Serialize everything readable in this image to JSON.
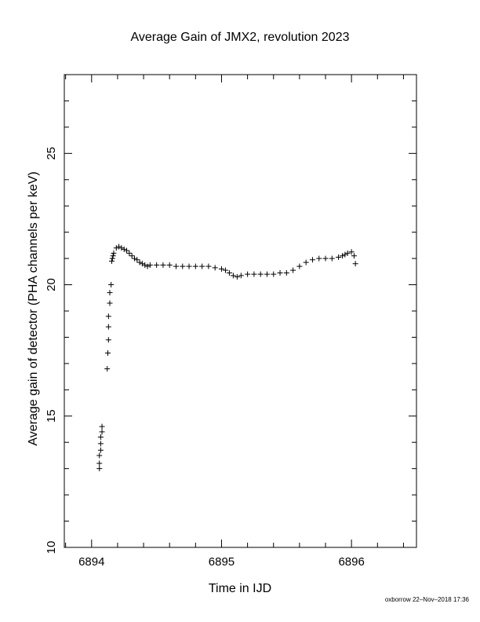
{
  "chart_data": {
    "type": "scatter",
    "title": "Average Gain of JMX2, revolution 2023",
    "xlabel": "Time in IJD",
    "ylabel": "Average gain of detector (PHA channels per keV)",
    "xlim": [
      6893.79,
      6896.5
    ],
    "ylim": [
      10,
      28
    ],
    "xticks": [
      6894,
      6895,
      6896
    ],
    "yticks": [
      10,
      15,
      20,
      25
    ],
    "grid": false,
    "marker": "plus",
    "marker_color": "#000000",
    "x": [
      6894.06,
      6894.06,
      6894.06,
      6894.07,
      6894.07,
      6894.07,
      6894.08,
      6894.08,
      6894.12,
      6894.125,
      6894.13,
      6894.13,
      6894.13,
      6894.14,
      6894.14,
      6894.15,
      6894.155,
      6894.16,
      6894.165,
      6894.17,
      6894.19,
      6894.21,
      6894.23,
      6894.25,
      6894.27,
      6894.29,
      6894.31,
      6894.33,
      6894.35,
      6894.37,
      6894.39,
      6894.41,
      6894.43,
      6894.45,
      6894.5,
      6894.55,
      6894.6,
      6894.65,
      6894.7,
      6894.75,
      6894.8,
      6894.85,
      6894.9,
      6894.95,
      6895.0,
      6895.03,
      6895.06,
      6895.09,
      6895.12,
      6895.15,
      6895.2,
      6895.25,
      6895.3,
      6895.35,
      6895.4,
      6895.45,
      6895.5,
      6895.55,
      6895.6,
      6895.65,
      6895.7,
      6895.75,
      6895.8,
      6895.85,
      6895.9,
      6895.93,
      6895.95,
      6895.97,
      6896.0,
      6896.02,
      6896.03
    ],
    "y": [
      13.0,
      13.2,
      13.5,
      13.7,
      13.95,
      14.2,
      14.4,
      14.6,
      16.8,
      17.4,
      17.9,
      18.4,
      18.8,
      19.3,
      19.7,
      20.0,
      20.9,
      21.0,
      21.1,
      21.2,
      21.4,
      21.45,
      21.4,
      21.35,
      21.3,
      21.2,
      21.1,
      21.0,
      20.95,
      20.85,
      20.8,
      20.75,
      20.7,
      20.75,
      20.75,
      20.75,
      20.75,
      20.7,
      20.7,
      20.7,
      20.7,
      20.7,
      20.7,
      20.65,
      20.6,
      20.55,
      20.45,
      20.35,
      20.3,
      20.35,
      20.4,
      20.4,
      20.4,
      20.4,
      20.4,
      20.45,
      20.45,
      20.55,
      20.7,
      20.85,
      20.95,
      21.0,
      21.0,
      21.0,
      21.05,
      21.1,
      21.15,
      21.2,
      21.25,
      21.1,
      20.8
    ]
  },
  "footer": {
    "credit": "oxborrow 22–Nov–2018 17:36"
  }
}
